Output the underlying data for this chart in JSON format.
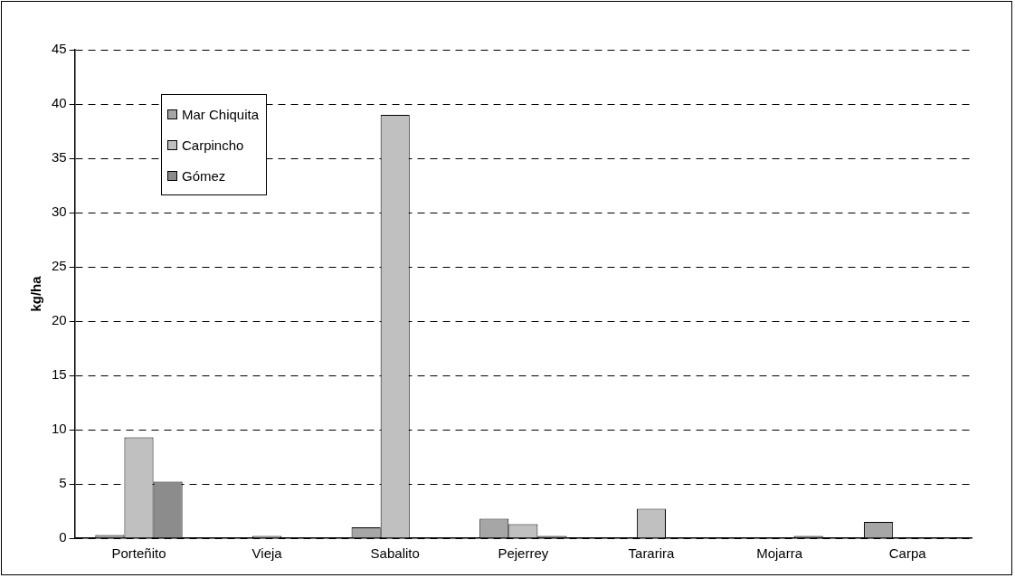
{
  "chart_data": {
    "type": "bar",
    "ylabel": "kg/ha",
    "categories": [
      "Porteñito",
      "Vieja",
      "Sabalito",
      "Pejerrey",
      "Tararira",
      "Mojarra",
      "Carpa"
    ],
    "series": [
      {
        "name": "Mar Chiquita",
        "color": "#a6a6a6",
        "values": [
          0.3,
          null,
          1.0,
          1.8,
          null,
          null,
          1.5
        ]
      },
      {
        "name": "Carpincho",
        "color": "#c0c0c0",
        "values": [
          9.3,
          0.2,
          39,
          1.3,
          2.7,
          null,
          null
        ]
      },
      {
        "name": "Gómez",
        "color": "#8c8c8c",
        "values": [
          5.2,
          null,
          null,
          0.2,
          null,
          0.2,
          null
        ]
      }
    ],
    "ylim": [
      0,
      45
    ],
    "yticks": [
      0,
      5,
      10,
      15,
      20,
      25,
      30,
      35,
      40,
      45
    ],
    "grid": "y",
    "legend": "top left"
  }
}
